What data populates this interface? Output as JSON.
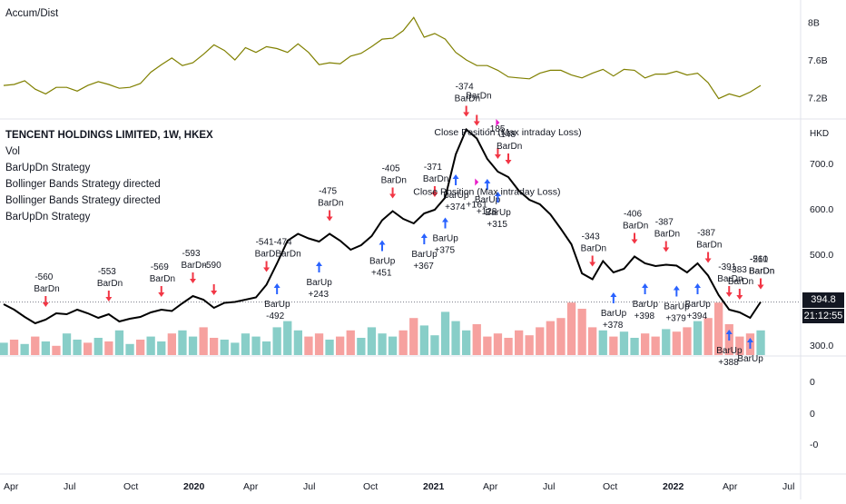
{
  "chart_data": [
    {
      "panel": "Accum/Dist",
      "type": "line",
      "title": "Accum/Dist",
      "y_ticks": [
        "8B",
        "7.6B",
        "7.2B"
      ],
      "color": "#808000",
      "series": [
        {
          "name": "Accum/Dist",
          "values": [
            7.33,
            7.34,
            7.38,
            7.29,
            7.24,
            7.31,
            7.31,
            7.27,
            7.33,
            7.37,
            7.34,
            7.3,
            7.31,
            7.35,
            7.47,
            7.55,
            7.62,
            7.54,
            7.57,
            7.66,
            7.76,
            7.7,
            7.6,
            7.73,
            7.68,
            7.74,
            7.72,
            7.68,
            7.77,
            7.68,
            7.55,
            7.57,
            7.56,
            7.64,
            7.67,
            7.74,
            7.82,
            7.83,
            7.91,
            8.05,
            7.84,
            7.88,
            7.82,
            7.68,
            7.6,
            7.54,
            7.54,
            7.49,
            7.42,
            7.41,
            7.4,
            7.46,
            7.49,
            7.49,
            7.44,
            7.41,
            7.46,
            7.5,
            7.43,
            7.5,
            7.49,
            7.41,
            7.45,
            7.45,
            7.48,
            7.44,
            7.46,
            7.36,
            7.19,
            7.24,
            7.21,
            7.26,
            7.33
          ]
        }
      ]
    },
    {
      "panel": "Price",
      "type": "line",
      "title": "TENCENT HOLDINGS LIMITED, 1W, HKEX",
      "legend": [
        "TENCENT HOLDINGS LIMITED, 1W, HKEX",
        "Vol",
        "BarUpDn Strategy",
        "Bollinger Bands Strategy directed",
        "Bollinger Bands Strategy directed",
        "BarUpDn Strategy"
      ],
      "currency": "HKD",
      "y_ticks": [
        "700.0",
        "600.0",
        "500.0",
        "300.0"
      ],
      "last_price": "394.8",
      "countdown": "21:12:55",
      "series": [
        {
          "name": "TENCENT HOLDINGS LIMITED",
          "values": [
            390,
            378,
            362,
            348,
            356,
            370,
            368,
            378,
            370,
            360,
            368,
            352,
            358,
            362,
            372,
            378,
            375,
            392,
            408,
            400,
            382,
            393,
            395,
            400,
            405,
            433,
            480,
            530,
            545,
            535,
            528,
            545,
            530,
            510,
            520,
            540,
            575,
            595,
            578,
            568,
            590,
            598,
            625,
            720,
            775,
            755,
            710,
            682,
            670,
            640,
            620,
            610,
            588,
            556,
            522,
            458,
            445,
            485,
            460,
            468,
            495,
            480,
            474,
            477,
            475,
            460,
            480,
            453,
            410,
            378,
            372,
            360,
            395
          ]
        }
      ],
      "signals": [
        {
          "text": "-560",
          "sub": "BarDn"
        },
        {
          "text": "-553",
          "sub": "BarDn"
        },
        {
          "text": "-569",
          "sub": "BarDn"
        },
        {
          "text": "-593",
          "sub": "BarDn"
        },
        {
          "text": "-590",
          "sub": ""
        },
        {
          "text": "-541-474",
          "sub": "BarDBarDn"
        },
        {
          "text": "-475",
          "sub": "BarDn"
        },
        {
          "text": "-405",
          "sub": "BarDn"
        },
        {
          "text": "-371",
          "sub": "BarDn"
        },
        {
          "text": "-374",
          "sub": "BarDn"
        },
        {
          "text": "-185",
          "sub": ""
        },
        {
          "text": "BarDn",
          "sub": ""
        },
        {
          "text": "-148",
          "sub": "BarDn"
        },
        {
          "text": "-343",
          "sub": "BarDn"
        },
        {
          "text": "-406",
          "sub": "BarDn"
        },
        {
          "text": "-387",
          "sub": "BarDn"
        },
        {
          "text": "-387",
          "sub": "BarDn"
        },
        {
          "text": "-391",
          "sub": "BarDn"
        },
        {
          "text": "-383",
          "sub": "BarDn"
        },
        {
          "text": "-510",
          "sub": "BarDn"
        },
        {
          "text": "-261",
          "sub": "BarDn"
        },
        {
          "text": "BarUp",
          "sub": "-492"
        },
        {
          "text": "BarUp",
          "sub": "+243"
        },
        {
          "text": "BarUp",
          "sub": "+451"
        },
        {
          "text": "BarUp",
          "sub": "+367"
        },
        {
          "text": "BarUp",
          "sub": "+375"
        },
        {
          "text": "BarUp",
          "sub": "+374"
        },
        {
          "text": "BarUp",
          "sub": "+128"
        },
        {
          "text": "BarUp",
          "sub": "+315"
        },
        {
          "text": "BarUp",
          "sub": "+378"
        },
        {
          "text": "BarUp",
          "sub": "+398"
        },
        {
          "text": "BarUp",
          "sub": "+379"
        },
        {
          "text": "BarUp",
          "sub": "+394"
        },
        {
          "text": "BarUp",
          "sub": "+388"
        },
        {
          "text": "BarUp",
          "sub": ""
        },
        {
          "text": "Close Position (Max intraday Loss)",
          "sub": ""
        },
        {
          "text": "Close Position (Max intraday Loss)",
          "sub": "+161"
        }
      ]
    },
    {
      "panel": "Volume",
      "type": "bar",
      "up_color": "#26a69a",
      "down_color": "#ef5350",
      "values": [
        0.2,
        0.25,
        0.18,
        0.3,
        0.22,
        0.15,
        0.35,
        0.25,
        0.2,
        0.28,
        0.22,
        0.4,
        0.18,
        0.25,
        0.3,
        0.22,
        0.35,
        0.4,
        0.3,
        0.45,
        0.28,
        0.25,
        0.2,
        0.35,
        0.3,
        0.22,
        0.45,
        0.55,
        0.4,
        0.3,
        0.35,
        0.25,
        0.3,
        0.4,
        0.28,
        0.45,
        0.35,
        0.3,
        0.4,
        0.6,
        0.48,
        0.32,
        0.7,
        0.55,
        0.4,
        0.5,
        0.3,
        0.35,
        0.28,
        0.4,
        0.32,
        0.45,
        0.55,
        0.6,
        0.85,
        0.75,
        0.45,
        0.4,
        0.3,
        0.38,
        0.28,
        0.35,
        0.3,
        0.42,
        0.38,
        0.45,
        0.55,
        0.6,
        0.85,
        0.5,
        0.3,
        0.35,
        0.4
      ],
      "up": [
        true,
        false,
        true,
        false,
        true,
        false,
        true,
        true,
        false,
        true,
        false,
        true,
        true,
        false,
        true,
        true,
        false,
        true,
        true,
        false,
        false,
        true,
        true,
        true,
        true,
        true,
        true,
        true,
        true,
        false,
        false,
        true,
        false,
        false,
        true,
        true,
        true,
        true,
        false,
        false,
        true,
        true,
        true,
        true,
        true,
        false,
        false,
        false,
        false,
        false,
        false,
        false,
        false,
        false,
        false,
        false,
        false,
        true,
        false,
        true,
        true,
        false,
        false,
        true,
        false,
        false,
        true,
        false,
        false,
        false,
        false,
        false,
        true
      ]
    },
    {
      "panel": "Empty",
      "type": "line",
      "y_ticks": [
        "0",
        "0",
        "-0"
      ]
    }
  ],
  "x_axis": {
    "labels": [
      "Apr",
      "Jul",
      "Oct",
      "2020",
      "Apr",
      "Jul",
      "Oct",
      "2021",
      "Apr",
      "Jul",
      "Oct",
      "2022",
      "Apr",
      "Jul"
    ]
  },
  "colors": {
    "up_arrow": "#2962ff",
    "down_arrow": "#f23645",
    "close_marker": "#e91ec8",
    "price_line": "#000000"
  }
}
